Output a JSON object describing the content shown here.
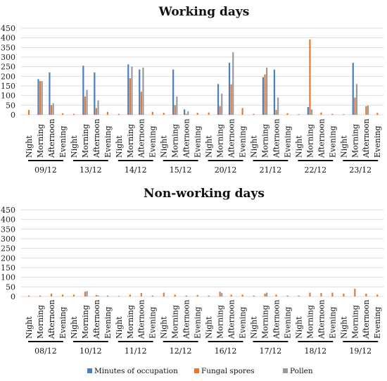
{
  "colors": {
    "minutes": "#4a7fbf",
    "fungal": "#e8782c",
    "pollen": "#9a9a9a",
    "grid": "#dddddd"
  },
  "legend": [
    "Minutes of occupation",
    "Fungal spores",
    "Pollen"
  ],
  "chart_data": [
    {
      "type": "bar",
      "title": "Working days",
      "ylim": [
        0,
        450
      ],
      "yticks": [
        0,
        50,
        100,
        150,
        200,
        250,
        300,
        350,
        400,
        450
      ],
      "periods": [
        "Night",
        "Morning",
        "Afternoon",
        "Evening"
      ],
      "groups": [
        {
          "date": "09/12",
          "series": [
            {
              "name": "Minutes of occupation",
              "values": [
                0,
                185,
                220,
                0
              ]
            },
            {
              "name": "Fungal spores",
              "values": [
                25,
                175,
                50,
                8
              ]
            },
            {
              "name": "Pollen",
              "values": [
                0,
                175,
                60,
                0
              ]
            }
          ]
        },
        {
          "date": "13/12",
          "series": [
            {
              "name": "Minutes of occupation",
              "values": [
                0,
                255,
                220,
                0
              ]
            },
            {
              "name": "Fungal spores",
              "values": [
                5,
                95,
                35,
                15
              ]
            },
            {
              "name": "Pollen",
              "values": [
                0,
                130,
                75,
                0
              ]
            }
          ]
        },
        {
          "date": "14/12",
          "series": [
            {
              "name": "Minutes of occupation",
              "values": [
                0,
                262,
                235,
                0
              ]
            },
            {
              "name": "Fungal spores",
              "values": [
                5,
                190,
                120,
                15
              ]
            },
            {
              "name": "Pollen",
              "values": [
                0,
                250,
                245,
                0
              ]
            }
          ]
        },
        {
          "date": "15/12",
          "series": [
            {
              "name": "Minutes of occupation",
              "values": [
                0,
                235,
                28,
                0
              ]
            },
            {
              "name": "Fungal spores",
              "values": [
                10,
                50,
                5,
                10
              ]
            },
            {
              "name": "Pollen",
              "values": [
                0,
                95,
                18,
                0
              ]
            }
          ]
        },
        {
          "date": "20/12",
          "series": [
            {
              "name": "Minutes of occupation",
              "values": [
                0,
                160,
                270,
                0
              ]
            },
            {
              "name": "Fungal spores",
              "values": [
                12,
                45,
                158,
                35
              ]
            },
            {
              "name": "Pollen",
              "values": [
                0,
                110,
                325,
                0
              ]
            }
          ]
        },
        {
          "date": "21/12",
          "series": [
            {
              "name": "Minutes of occupation",
              "values": [
                0,
                195,
                235,
                0
              ]
            },
            {
              "name": "Fungal spores",
              "values": [
                5,
                210,
                25,
                8
              ]
            },
            {
              "name": "Pollen",
              "values": [
                0,
                245,
                90,
                0
              ]
            }
          ]
        },
        {
          "date": "22/12",
          "series": [
            {
              "name": "Minutes of occupation",
              "values": [
                0,
                40,
                0,
                0
              ]
            },
            {
              "name": "Fungal spores",
              "values": [
                3,
                392,
                12,
                5
              ]
            },
            {
              "name": "Pollen",
              "values": [
                0,
                28,
                0,
                0
              ]
            }
          ]
        },
        {
          "date": "23/12",
          "series": [
            {
              "name": "Minutes of occupation",
              "values": [
                0,
                270,
                0,
                0
              ]
            },
            {
              "name": "Fungal spores",
              "values": [
                3,
                90,
                45,
                10
              ]
            },
            {
              "name": "Pollen",
              "values": [
                0,
                160,
                48,
                0
              ]
            }
          ]
        }
      ]
    },
    {
      "type": "bar",
      "title": "Non-working days",
      "ylim": [
        0,
        450
      ],
      "yticks": [
        0,
        50,
        100,
        150,
        200,
        250,
        300,
        350,
        400,
        450
      ],
      "periods": [
        "Night",
        "Morning",
        "Afternoon",
        "Evening"
      ],
      "groups": [
        {
          "date": "08/12",
          "series": [
            {
              "name": "Minutes of occupation",
              "values": [
                0,
                0,
                0,
                0
              ]
            },
            {
              "name": "Fungal spores",
              "values": [
                5,
                5,
                15,
                10
              ]
            },
            {
              "name": "Pollen",
              "values": [
                0,
                0,
                0,
                0
              ]
            }
          ]
        },
        {
          "date": "10/12",
          "series": [
            {
              "name": "Minutes of occupation",
              "values": [
                0,
                0,
                0,
                0
              ]
            },
            {
              "name": "Fungal spores",
              "values": [
                10,
                25,
                8,
                5
              ]
            },
            {
              "name": "Pollen",
              "values": [
                0,
                28,
                5,
                0
              ]
            }
          ]
        },
        {
          "date": "11/12",
          "series": [
            {
              "name": "Minutes of occupation",
              "values": [
                0,
                0,
                0,
                0
              ]
            },
            {
              "name": "Fungal spores",
              "values": [
                3,
                10,
                18,
                5
              ]
            },
            {
              "name": "Pollen",
              "values": [
                0,
                0,
                0,
                0
              ]
            }
          ]
        },
        {
          "date": "12/12",
          "series": [
            {
              "name": "Minutes of occupation",
              "values": [
                0,
                0,
                0,
                0
              ]
            },
            {
              "name": "Fungal spores",
              "values": [
                20,
                10,
                5,
                8
              ]
            },
            {
              "name": "Pollen",
              "values": [
                0,
                0,
                0,
                0
              ]
            }
          ]
        },
        {
          "date": "16/12",
          "series": [
            {
              "name": "Minutes of occupation",
              "values": [
                0,
                0,
                0,
                0
              ]
            },
            {
              "name": "Fungal spores",
              "values": [
                5,
                25,
                10,
                10
              ]
            },
            {
              "name": "Pollen",
              "values": [
                0,
                18,
                0,
                0
              ]
            }
          ]
        },
        {
          "date": "17/12",
          "series": [
            {
              "name": "Minutes of occupation",
              "values": [
                0,
                0,
                0,
                0
              ]
            },
            {
              "name": "Fungal spores",
              "values": [
                5,
                15,
                10,
                5
              ]
            },
            {
              "name": "Pollen",
              "values": [
                0,
                20,
                0,
                0
              ]
            }
          ]
        },
        {
          "date": "18/12",
          "series": [
            {
              "name": "Minutes of occupation",
              "values": [
                0,
                0,
                0,
                0
              ]
            },
            {
              "name": "Fungal spores",
              "values": [
                5,
                20,
                18,
                20
              ]
            },
            {
              "name": "Pollen",
              "values": [
                0,
                0,
                0,
                0
              ]
            }
          ]
        },
        {
          "date": "19/12",
          "series": [
            {
              "name": "Minutes of occupation",
              "values": [
                0,
                0,
                0,
                0
              ]
            },
            {
              "name": "Fungal spores",
              "values": [
                15,
                40,
                15,
                10
              ]
            },
            {
              "name": "Pollen",
              "values": [
                0,
                0,
                0,
                0
              ]
            }
          ]
        }
      ]
    }
  ]
}
